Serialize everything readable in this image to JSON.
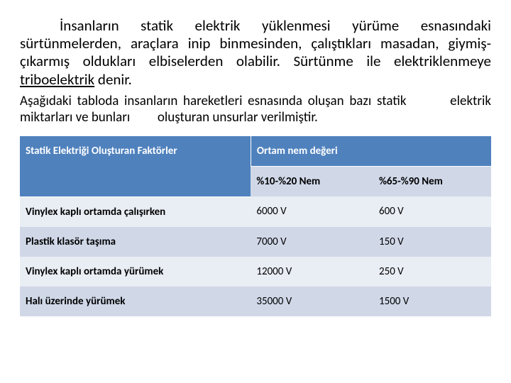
{
  "paragraph1": {
    "text_before": "İnsanların statik elektrik yüklenmesi yürüme esnasındaki sürtünmelerden, araçlara inip binmesinden, çalıştıkları masadan, giymiş-çıkarmış oldukları elbiselerden olabilir. Sürtünme ile elektriklenmeye ",
    "tribo": "triboelektrik",
    "text_after": " denir."
  },
  "paragraph2": "Aşağıdaki tabloda insanların hareketleri esnasında oluşan bazı statik        elektrik miktarları ve bunları         oluşturan unsurlar verilmiştir.",
  "table": {
    "header_row1_col1": "Statik Elektriği Oluşturan Faktörler",
    "header_row1_col2": "Ortam nem değeri",
    "header_row2_col1": "",
    "header_row2_col2": "%10-%20 Nem",
    "header_row2_col3": "%65-%90 Nem",
    "rows": [
      {
        "factor": "Vinylex kaplı ortamda çalışırken",
        "low": "6000 V",
        "high": "600 V"
      },
      {
        "factor": "Plastik klasör taşıma",
        "low": "7000 V",
        "high": "150 V"
      },
      {
        "factor": "Vinylex kaplı ortamda yürümek",
        "low": "12000 V",
        "high": "250 V"
      },
      {
        "factor": "Halı üzerinde yürümek",
        "low": "35000 V",
        "high": "1500 V"
      }
    ],
    "colors": {
      "header_bg": "#4f81bd",
      "header_fg": "#ffffff",
      "band_light": "#e9edf4",
      "band_dark": "#d0d8e8"
    }
  }
}
